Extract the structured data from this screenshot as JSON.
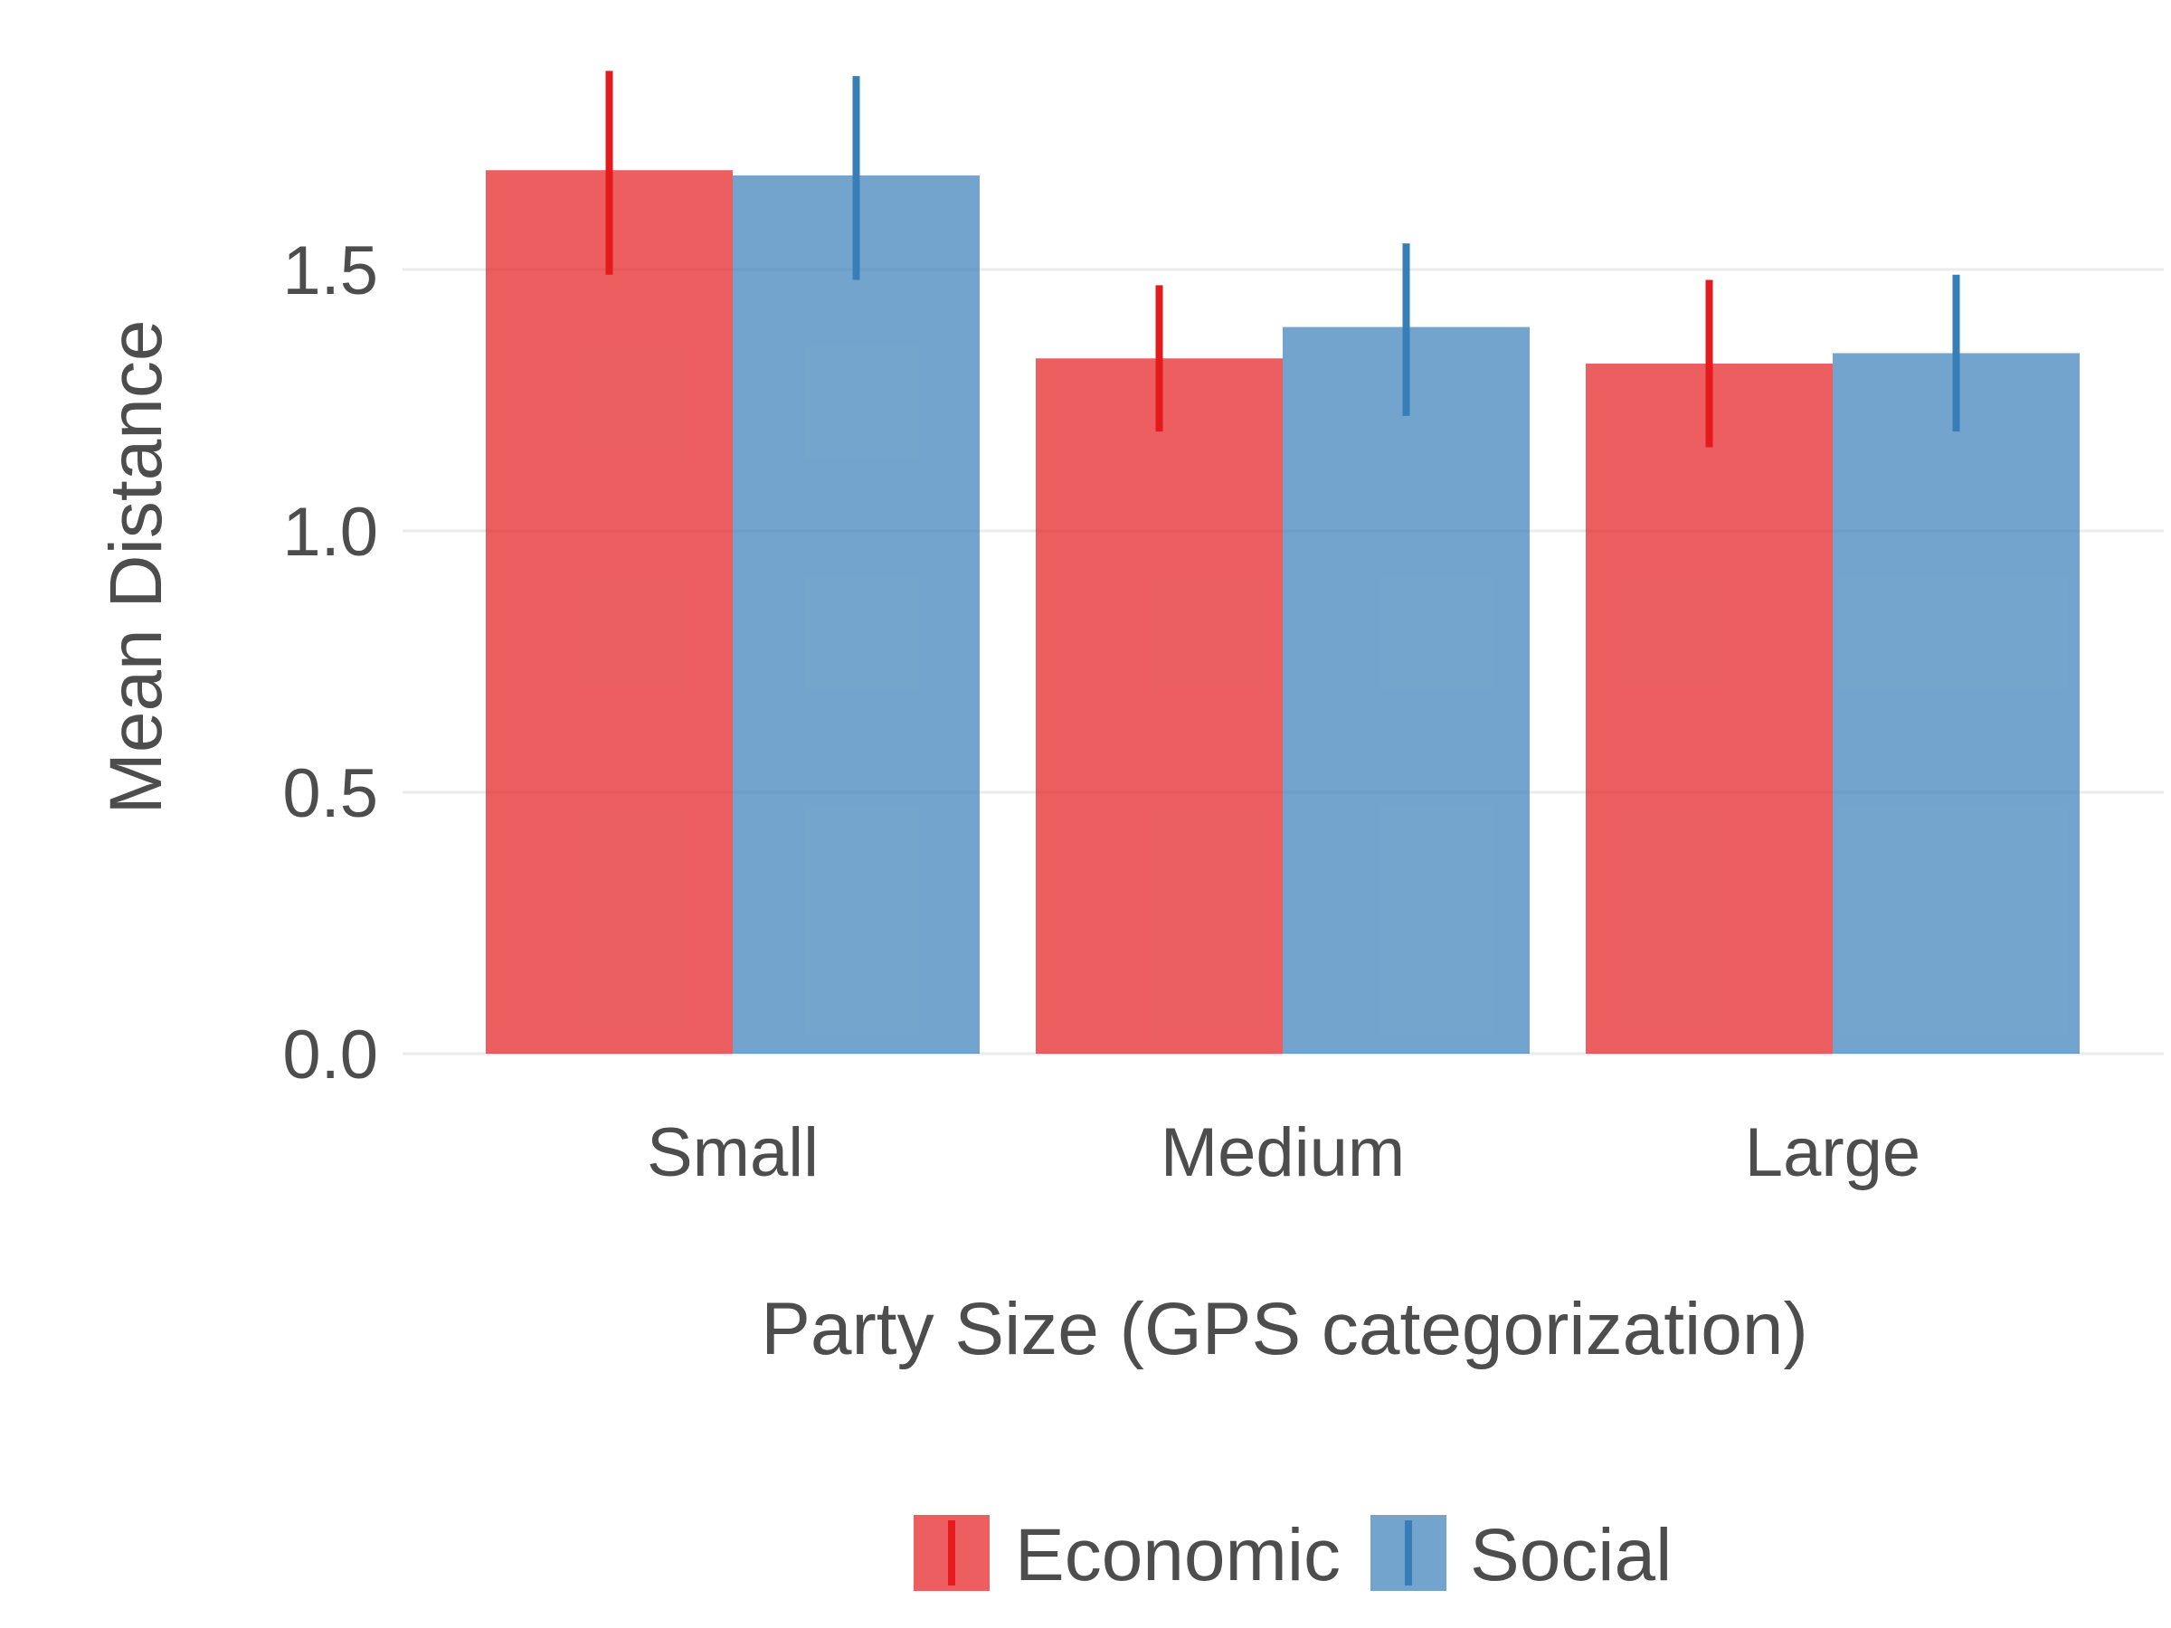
{
  "chart_data": {
    "type": "bar",
    "title": "",
    "xlabel": "Party Size (GPS categorization)",
    "ylabel": "Mean Distance",
    "categories": [
      "Small",
      "Medium",
      "Large"
    ],
    "ylim": [
      0,
      1.85
    ],
    "yticks": [
      0.0,
      0.5,
      1.0,
      1.5
    ],
    "ytick_labels": [
      "0.0",
      "0.5",
      "1.0",
      "1.5"
    ],
    "grid": true,
    "legend_position": "bottom",
    "series": [
      {
        "name": "Economic",
        "color": "#e41a1c",
        "values": [
          1.69,
          1.33,
          1.32
        ],
        "error_low": [
          1.49,
          1.19,
          1.16
        ],
        "error_high": [
          1.88,
          1.47,
          1.48
        ]
      },
      {
        "name": "Social",
        "color": "#377eb8",
        "values": [
          1.68,
          1.39,
          1.34
        ],
        "error_low": [
          1.48,
          1.22,
          1.19
        ],
        "error_high": [
          1.87,
          1.55,
          1.49
        ]
      }
    ]
  }
}
